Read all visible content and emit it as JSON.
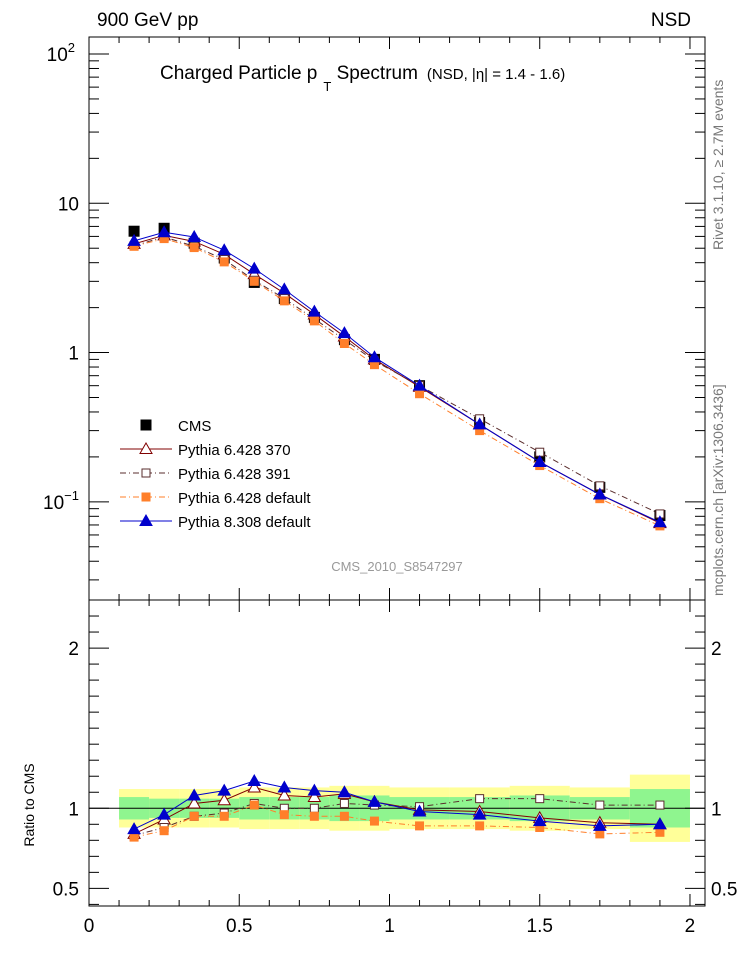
{
  "header": {
    "left": "900 GeV pp",
    "right": "NSD"
  },
  "title": {
    "main_a": "Charged Particle p",
    "main_sub": "T",
    "main_b": " Spectrum",
    "extra_a": "(NSD, |",
    "extra_eta": "η",
    "extra_b": "| = 1.4 - 1.6)"
  },
  "side_labels": {
    "rivet": "Rivet 3.1.10, ≥ 2.7M events",
    "mcplots": "mcplots.cern.ch [arXiv:1306.3436]"
  },
  "watermark": "CMS_2010_S8547297",
  "ratio_ylabel": "Ratio to CMS",
  "colors": {
    "cms": "#000000",
    "p370": "#800000",
    "p391": "#5a2d2d",
    "pdef": "#ff7f2a",
    "p8": "#0000cc",
    "band_inner": "#8ff58f",
    "band_outer": "#ffff99"
  },
  "chart_data": [
    {
      "type": "scatter",
      "scale": "log",
      "x_range": [
        0,
        2.05
      ],
      "y_range": [
        0.022,
        130
      ],
      "y_ticks": [
        {
          "value": 100,
          "label": "10",
          "sup": "2"
        },
        {
          "value": 10,
          "label": "10",
          "sup": ""
        },
        {
          "value": 1,
          "label": "1",
          "sup": ""
        },
        {
          "value": 0.1,
          "label": "10",
          "sup": "−1"
        }
      ],
      "x": [
        0.15,
        0.25,
        0.35,
        0.45,
        0.55,
        0.65,
        0.75,
        0.85,
        0.95,
        1.1,
        1.3,
        1.5,
        1.7,
        1.9
      ],
      "legend_position": "left-middle",
      "series": [
        {
          "name": "CMS",
          "key": "cms",
          "marker": "square-filled",
          "line": "none",
          "values": [
            6.5,
            6.8,
            5.4,
            4.3,
            2.95,
            2.3,
            1.72,
            1.22,
            0.9,
            0.6,
            0.34,
            0.2,
            0.125,
            0.081
          ]
        },
        {
          "name": "Pythia 6.428 370",
          "key": "p370",
          "marker": "triangle-open",
          "line": "solid",
          "values": [
            5.35,
            6.1,
            5.55,
            4.55,
            3.35,
            2.5,
            1.8,
            1.28,
            0.9,
            0.59,
            0.33,
            0.185,
            0.112,
            0.072
          ]
        },
        {
          "name": "Pythia 6.428 391",
          "key": "p391",
          "marker": "square-open",
          "line": "dashdot",
          "values": [
            5.2,
            5.95,
            5.15,
            4.2,
            3.05,
            2.3,
            1.68,
            1.22,
            0.88,
            0.6,
            0.36,
            0.215,
            0.128,
            0.083
          ]
        },
        {
          "name": "Pythia 6.428 default",
          "key": "pdef",
          "marker": "square-filled",
          "line": "dashdot",
          "values": [
            5.15,
            5.8,
            5.05,
            4.05,
            3.0,
            2.22,
            1.63,
            1.15,
            0.83,
            0.53,
            0.3,
            0.175,
            0.105,
            0.069
          ]
        },
        {
          "name": "Pythia 8.308 default",
          "key": "p8",
          "marker": "triangle-filled",
          "line": "solid",
          "values": [
            5.6,
            6.4,
            5.95,
            4.85,
            3.65,
            2.65,
            1.88,
            1.35,
            0.93,
            0.6,
            0.33,
            0.185,
            0.112,
            0.073
          ]
        }
      ]
    },
    {
      "type": "scatter",
      "x_range": [
        0,
        2.05
      ],
      "y_range": [
        0.39,
        2.3
      ],
      "y_ticks": [
        {
          "value": 2,
          "label": "2"
        },
        {
          "value": 1,
          "label": "1"
        },
        {
          "value": 0.5,
          "label": "0.5"
        }
      ],
      "x_ticks": [
        "0",
        "0.5",
        "1",
        "1.5",
        "2"
      ],
      "ylabel": "Ratio to CMS",
      "x": [
        0.15,
        0.25,
        0.35,
        0.45,
        0.55,
        0.65,
        0.75,
        0.85,
        0.95,
        1.1,
        1.3,
        1.5,
        1.7,
        1.9
      ],
      "bins": [
        [
          0.1,
          0.2
        ],
        [
          0.2,
          0.3
        ],
        [
          0.3,
          0.4
        ],
        [
          0.4,
          0.5
        ],
        [
          0.5,
          0.6
        ],
        [
          0.6,
          0.7
        ],
        [
          0.7,
          0.8
        ],
        [
          0.8,
          0.9
        ],
        [
          0.9,
          1.0
        ],
        [
          1.0,
          1.2
        ],
        [
          1.2,
          1.4
        ],
        [
          1.4,
          1.6
        ],
        [
          1.6,
          1.8
        ],
        [
          1.8,
          2.0
        ]
      ],
      "band_inner": [
        0.07,
        0.06,
        0.06,
        0.06,
        0.07,
        0.07,
        0.07,
        0.08,
        0.08,
        0.07,
        0.07,
        0.08,
        0.07,
        0.12
      ],
      "band_outer": [
        0.12,
        0.12,
        0.12,
        0.12,
        0.13,
        0.13,
        0.13,
        0.14,
        0.14,
        0.13,
        0.13,
        0.14,
        0.13,
        0.21
      ],
      "series": [
        {
          "name": "Pythia 6.428 370",
          "key": "p370",
          "marker": "triangle-open",
          "line": "solid",
          "values": [
            0.84,
            0.93,
            1.03,
            1.05,
            1.13,
            1.08,
            1.07,
            1.09,
            1.04,
            0.99,
            0.98,
            0.94,
            0.91,
            0.9
          ]
        },
        {
          "name": "Pythia 6.428 391",
          "key": "p391",
          "marker": "square-open",
          "line": "dashdot",
          "values": [
            0.83,
            0.88,
            0.95,
            0.97,
            1.03,
            1.0,
            1.0,
            1.03,
            1.02,
            1.01,
            1.06,
            1.06,
            1.02,
            1.02
          ]
        },
        {
          "name": "Pythia 6.428 default",
          "key": "pdef",
          "marker": "square-filled",
          "line": "dashdot",
          "values": [
            0.82,
            0.86,
            0.95,
            0.95,
            1.02,
            0.96,
            0.95,
            0.95,
            0.92,
            0.89,
            0.89,
            0.88,
            0.84,
            0.85
          ]
        },
        {
          "name": "Pythia 8.308 default",
          "key": "p8",
          "marker": "triangle-filled",
          "line": "solid",
          "values": [
            0.87,
            0.96,
            1.08,
            1.11,
            1.17,
            1.13,
            1.11,
            1.1,
            1.04,
            0.98,
            0.96,
            0.92,
            0.89,
            0.9
          ]
        }
      ]
    }
  ]
}
